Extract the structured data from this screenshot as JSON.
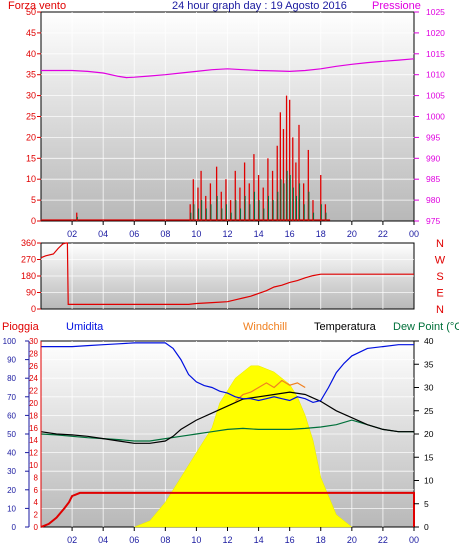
{
  "header": {
    "left": "Forza vento",
    "center": "24 hour graph day : 19 Agosto 2016",
    "right": "Pressione"
  },
  "bottom_header": {
    "rain": "Pioggia",
    "humidity": "Umidita",
    "windchill": "Windchill",
    "temperature": "Temperatura",
    "dewpoint": "Dew Point (°C"
  },
  "colors": {
    "red": "#e00000",
    "magenta": "#e000e0",
    "navy": "#1a1aa0",
    "blue": "#0010e0",
    "orange": "#f08020",
    "green": "#00703a",
    "yellow": "#ffff00",
    "panel_top": "#ffffff",
    "panel_bottom": "#b8b8b8"
  },
  "chart_data": [
    {
      "type": "bar",
      "name": "wind-pressure",
      "x_ticks": [
        "02",
        "04",
        "06",
        "08",
        "10",
        "12",
        "14",
        "16",
        "18",
        "20",
        "22",
        "00"
      ],
      "left_ticks": [
        "50",
        "45",
        "40",
        "35",
        "30",
        "25",
        "20",
        "15",
        "10",
        "5",
        "0"
      ],
      "right_ticks": [
        "1025",
        "1020",
        "1015",
        "1010",
        "1005",
        "1000",
        "995",
        "990",
        "985",
        "980",
        "975"
      ],
      "left_ylim": [
        0,
        50
      ],
      "right_ylim": [
        975,
        1025
      ],
      "pressure": {
        "x": [
          0,
          1,
          2,
          3,
          4,
          5,
          5.5,
          6,
          7,
          8,
          9,
          10,
          11,
          12,
          13,
          14,
          15,
          16,
          17,
          18,
          19,
          20,
          21,
          22,
          23,
          24
        ],
        "y": [
          1011,
          1011,
          1011,
          1010.8,
          1010.4,
          1009.6,
          1009.3,
          1009.4,
          1009.7,
          1010,
          1010.4,
          1010.8,
          1011.2,
          1011.4,
          1011.2,
          1011,
          1010.9,
          1010.8,
          1011,
          1011.4,
          1012,
          1012.5,
          1012.9,
          1013.2,
          1013.5,
          1013.8
        ]
      },
      "wind": {
        "x": [
          2.3,
          9.6,
          9.8,
          10.1,
          10.3,
          10.6,
          10.9,
          11.3,
          11.6,
          11.9,
          12.2,
          12.5,
          12.8,
          13.1,
          13.4,
          13.7,
          14.0,
          14.3,
          14.6,
          14.9,
          15.2,
          15.4,
          15.6,
          15.8,
          16.0,
          16.2,
          16.4,
          16.6,
          16.9,
          17.2,
          17.5,
          18.0,
          18.3
        ],
        "gust": [
          2,
          4,
          10,
          8,
          12,
          6,
          9,
          13,
          7,
          10,
          5,
          12,
          8,
          14,
          9,
          16,
          11,
          8,
          15,
          12,
          18,
          26,
          22,
          30,
          29,
          20,
          14,
          23,
          9,
          17,
          5,
          11,
          4
        ],
        "avg": [
          1,
          2,
          4,
          3,
          5,
          3,
          4,
          6,
          3,
          4,
          2,
          5,
          3,
          6,
          4,
          7,
          5,
          3,
          6,
          5,
          7,
          10,
          9,
          12,
          11,
          8,
          6,
          9,
          4,
          7,
          2,
          4,
          2
        ]
      }
    },
    {
      "type": "line",
      "name": "wind-direction",
      "left_ticks": [
        "360",
        "270",
        "180",
        "90",
        "0"
      ],
      "right_labels": [
        "N",
        "W",
        "S",
        "E",
        "N"
      ],
      "ylim": [
        0,
        360
      ],
      "direction": {
        "x": [
          0,
          0.3,
          0.8,
          1.1,
          1.4,
          1.6,
          1.7,
          1.75,
          5,
          8,
          9.5,
          10,
          11,
          12,
          12.5,
          13,
          13.5,
          14,
          14.5,
          15,
          15.5,
          16,
          16.5,
          17,
          17.5,
          18,
          19,
          20,
          22,
          24
        ],
        "y": [
          280,
          290,
          300,
          330,
          355,
          360,
          360,
          25,
          25,
          25,
          25,
          30,
          35,
          40,
          50,
          60,
          70,
          85,
          100,
          120,
          130,
          145,
          155,
          170,
          182,
          190,
          190,
          190,
          190,
          190
        ]
      }
    },
    {
      "type": "line",
      "name": "weather-24h",
      "left_ticks": [
        "100",
        "90",
        "80",
        "70",
        "60",
        "50",
        "40",
        "30",
        "20",
        "10",
        "0"
      ],
      "rain_ticks": [
        "30",
        "28",
        "26",
        "24",
        "22",
        "20",
        "18",
        "16",
        "14",
        "12",
        "10",
        "8",
        "6",
        "4",
        "2",
        "0"
      ],
      "temp_ticks": [
        "40",
        "35",
        "30",
        "25",
        "20",
        "15",
        "10",
        "5",
        "0"
      ],
      "humidity_ylim": [
        0,
        100
      ],
      "rain_ylim": [
        0,
        30
      ],
      "temp_ylim": [
        0,
        40
      ],
      "humidity": {
        "x": [
          0,
          1,
          2,
          3,
          4,
          5,
          6,
          7,
          8,
          8.5,
          9,
          9.5,
          10,
          10.5,
          11,
          11.5,
          12,
          12.5,
          13,
          13.5,
          14,
          14.5,
          15,
          15.5,
          16,
          16.5,
          17,
          17.5,
          18,
          18.5,
          19,
          19.5,
          20,
          21,
          22,
          23,
          24
        ],
        "y": [
          97,
          97,
          97,
          97.5,
          98,
          98.5,
          99,
          99,
          99,
          96,
          90,
          82,
          78,
          76,
          75,
          73,
          72,
          70,
          69,
          69,
          68,
          69,
          70,
          69,
          68,
          70,
          69,
          67,
          68,
          75,
          83,
          88,
          92,
          96,
          97,
          98,
          98
        ]
      },
      "temperature": {
        "x": [
          0,
          1,
          2,
          3,
          4,
          5,
          6,
          7,
          8,
          8.5,
          9,
          10,
          11,
          12,
          13,
          14,
          15,
          16,
          17,
          18,
          19,
          20,
          21,
          22,
          23,
          24
        ],
        "y": [
          20.5,
          20,
          19.8,
          19.5,
          19,
          18.5,
          18,
          18,
          18.5,
          19.5,
          21,
          23,
          24.5,
          26,
          27.5,
          28,
          28.5,
          29,
          28.5,
          27,
          25,
          23.5,
          22,
          21,
          20.5,
          20.5
        ]
      },
      "windchill": {
        "x": [
          12.5,
          13,
          13.5,
          14,
          14.5,
          15,
          15.5,
          16,
          16.5,
          17
        ],
        "y": [
          27,
          28.5,
          29,
          30,
          31,
          30,
          31.5,
          30.5,
          31,
          30
        ]
      },
      "dewpoint": {
        "x": [
          0,
          1,
          2,
          3,
          4,
          5,
          6,
          7,
          8,
          9,
          10,
          11,
          12,
          13,
          14,
          15,
          16,
          17,
          18,
          19,
          20,
          21,
          22,
          23,
          24
        ],
        "y": [
          20,
          19.8,
          19.5,
          19.2,
          19,
          18.8,
          18.5,
          18.5,
          19,
          19.5,
          20,
          20.5,
          21,
          21.2,
          21,
          21,
          21,
          21.2,
          21.5,
          22,
          23,
          22,
          21,
          20.5,
          20.5
        ]
      },
      "rain_cumulative": {
        "x": [
          0,
          0.5,
          1,
          1.5,
          1.8,
          2.0,
          2.2,
          2.5,
          3,
          24
        ],
        "y": [
          0,
          0.5,
          1.5,
          3,
          4,
          5,
          5.2,
          5.5,
          5.5,
          5.5
        ]
      },
      "solar": {
        "x": [
          6,
          7,
          8,
          9,
          10,
          10.5,
          11,
          11.5,
          12,
          12.5,
          13,
          13.5,
          14,
          14.5,
          15,
          15.5,
          16,
          16.5,
          17,
          17.5,
          18,
          19,
          20
        ],
        "y": [
          0,
          1,
          4,
          8,
          12,
          14,
          16,
          20,
          22,
          24,
          25,
          26,
          26,
          25.5,
          25,
          24,
          23,
          21,
          18,
          14,
          8,
          2,
          0
        ]
      }
    }
  ]
}
